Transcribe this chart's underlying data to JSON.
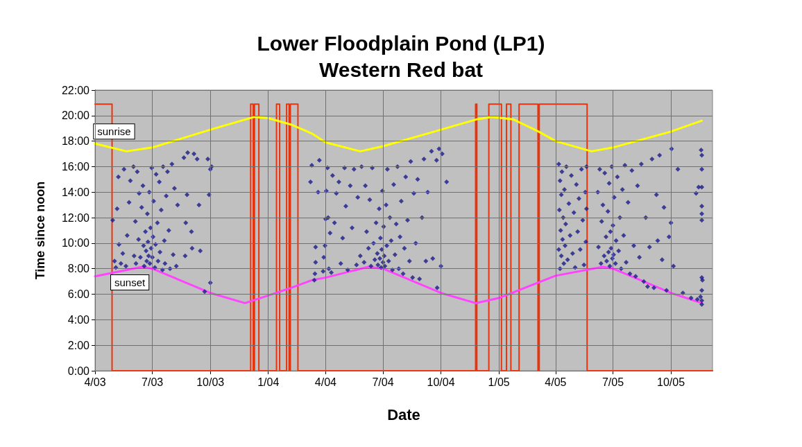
{
  "chart_data": {
    "type": "scatter",
    "title": "Lower Floodplain Pond (LP1)",
    "subtitle": "Western Red bat",
    "xlabel": "Date",
    "ylabel": "Time since noon",
    "xlim": [
      "2003-04-01",
      "2005-12-06"
    ],
    "xticks": [
      {
        "value": "2003-04-01",
        "label": "4/03"
      },
      {
        "value": "2003-07-01",
        "label": "7/03"
      },
      {
        "value": "2003-10-01",
        "label": "10/03"
      },
      {
        "value": "2004-01-01",
        "label": "1/04"
      },
      {
        "value": "2004-04-01",
        "label": "4/04"
      },
      {
        "value": "2004-07-01",
        "label": "7/04"
      },
      {
        "value": "2004-10-01",
        "label": "10/04"
      },
      {
        "value": "2005-01-01",
        "label": "1/05"
      },
      {
        "value": "2005-04-01",
        "label": "4/05"
      },
      {
        "value": "2005-07-01",
        "label": "7/05"
      },
      {
        "value": "2005-10-01",
        "label": "10/05"
      }
    ],
    "ylim": [
      0,
      22
    ],
    "yticks": [
      {
        "value": 0,
        "label": "0:00"
      },
      {
        "value": 2,
        "label": "2:00"
      },
      {
        "value": 4,
        "label": "4:00"
      },
      {
        "value": 6,
        "label": "6:00"
      },
      {
        "value": 8,
        "label": "8:00"
      },
      {
        "value": 10,
        "label": "10:00"
      },
      {
        "value": 12,
        "label": "12:00"
      },
      {
        "value": 14,
        "label": "14:00"
      },
      {
        "value": 16,
        "label": "16:00"
      },
      {
        "value": 18,
        "label": "18:00"
      },
      {
        "value": 20,
        "label": "20:00"
      },
      {
        "value": 22,
        "label": "22:00"
      }
    ],
    "grid": true,
    "legend": false,
    "series": [
      {
        "type": "line",
        "color": "#e8340c",
        "marker": "none",
        "x": [
          "2003-04-01",
          "2003-04-28",
          "2003-04-28",
          "2003-12-04",
          "2003-12-04",
          "2003-12-08",
          "2003-12-08",
          "2003-12-10",
          "2003-12-10",
          "2003-12-17",
          "2003-12-17",
          "2004-01-14",
          "2004-01-14",
          "2004-01-19",
          "2004-01-19",
          "2004-01-30",
          "2004-01-30",
          "2004-02-03",
          "2004-02-03",
          "2004-02-05",
          "2004-02-05",
          "2004-02-17",
          "2004-02-17",
          "2004-11-25",
          "2004-11-25",
          "2004-11-27",
          "2004-11-27",
          "2004-12-16",
          "2004-12-16",
          "2005-01-05",
          "2005-01-05",
          "2005-01-13",
          "2005-01-13",
          "2005-01-20",
          "2005-01-20",
          "2005-02-02",
          "2005-02-02",
          "2005-03-04",
          "2005-03-04",
          "2005-03-06",
          "2005-03-06",
          "2005-05-21",
          "2005-05-21",
          "2005-12-06"
        ],
        "values": [
          20.9,
          20.9,
          0,
          0,
          20.9,
          20.9,
          0,
          0,
          20.9,
          20.9,
          0,
          0,
          20.9,
          20.9,
          0,
          0,
          20.9,
          20.9,
          0,
          0,
          20.9,
          20.9,
          0,
          0,
          20.9,
          20.9,
          0,
          0,
          20.9,
          20.9,
          0,
          0,
          20.9,
          20.9,
          0,
          0,
          20.9,
          20.9,
          0,
          0,
          20.9,
          20.9,
          0,
          0
        ]
      },
      {
        "type": "line",
        "name": "sunrise",
        "color": "#ffff00",
        "marker": "none",
        "x": [
          "2003-04-01",
          "2003-05-21",
          "2003-07-01",
          "2003-10-01",
          "2003-12-10",
          "2004-01-01",
          "2004-02-06",
          "2004-03-10",
          "2004-04-01",
          "2004-05-26",
          "2004-07-01",
          "2004-10-01",
          "2004-11-26",
          "2004-12-21",
          "2005-01-24",
          "2005-03-05",
          "2005-04-01",
          "2005-05-28",
          "2005-07-01",
          "2005-10-01",
          "2005-11-19"
        ],
        "values": [
          17.8,
          17.2,
          17.5,
          18.9,
          19.9,
          19.8,
          19.3,
          18.6,
          17.9,
          17.2,
          17.6,
          18.9,
          19.7,
          19.9,
          19.7,
          18.75,
          18.0,
          17.2,
          17.5,
          18.75,
          19.6
        ]
      },
      {
        "type": "line",
        "name": "sunset",
        "color": "#ff44ff",
        "marker": "none",
        "x": [
          "2003-04-01",
          "2003-06-15",
          "2003-07-01",
          "2003-10-01",
          "2003-11-25",
          "2004-01-01",
          "2004-02-06",
          "2004-03-10",
          "2004-04-01",
          "2004-06-08",
          "2004-07-01",
          "2004-10-01",
          "2004-11-25",
          "2005-01-01",
          "2005-04-01",
          "2005-06-15",
          "2005-07-01",
          "2005-10-01",
          "2005-11-19"
        ],
        "values": [
          7.4,
          8.15,
          8.0,
          6.1,
          5.3,
          5.9,
          6.5,
          7.1,
          7.3,
          8.15,
          8.0,
          6.1,
          5.3,
          5.7,
          7.45,
          8.15,
          8.0,
          6.1,
          5.3
        ]
      },
      {
        "color": "#1a1a8c",
        "marker": "diamond",
        "x": [
          "2003-04-29",
          "2003-05-02",
          "2003-05-04",
          "2003-05-06",
          "2003-05-08",
          "2003-05-09",
          "2003-05-12",
          "2003-05-15",
          "2003-05-17",
          "2003-05-20",
          "2003-05-22",
          "2003-05-25",
          "2003-05-27",
          "2003-06-01",
          "2003-06-02",
          "2003-06-04",
          "2003-06-05",
          "2003-06-07",
          "2003-06-09",
          "2003-06-10",
          "2003-06-12",
          "2003-06-14",
          "2003-06-16",
          "2003-06-17",
          "2003-06-18",
          "2003-06-20",
          "2003-06-21",
          "2003-06-22",
          "2003-06-23",
          "2003-06-24",
          "2003-06-25",
          "2003-06-26",
          "2003-06-27",
          "2003-06-28",
          "2003-06-29",
          "2003-06-30",
          "2003-07-01",
          "2003-07-02",
          "2003-07-03",
          "2003-07-05",
          "2003-07-06",
          "2003-07-07",
          "2003-07-09",
          "2003-07-10",
          "2003-07-12",
          "2003-07-13",
          "2003-07-15",
          "2003-07-17",
          "2003-07-18",
          "2003-07-20",
          "2003-07-21",
          "2003-07-23",
          "2003-07-25",
          "2003-07-27",
          "2003-07-29",
          "2003-08-01",
          "2003-08-03",
          "2003-08-05",
          "2003-08-08",
          "2003-08-10",
          "2003-08-20",
          "2003-08-22",
          "2003-08-23",
          "2003-08-25",
          "2003-08-26",
          "2003-09-01",
          "2003-09-02",
          "2003-09-05",
          "2003-09-10",
          "2003-09-13",
          "2003-09-15",
          "2003-09-22",
          "2003-09-27",
          "2003-09-29",
          "2003-10-01",
          "2003-10-03",
          "2003-10-01",
          "2004-03-08",
          "2004-03-10",
          "2004-03-14",
          "2004-03-15",
          "2004-03-16",
          "2004-03-16",
          "2004-03-20",
          "2004-03-22",
          "2004-03-28",
          "2004-03-29",
          "2004-03-31",
          "2004-04-01",
          "2004-04-02",
          "2004-04-04",
          "2004-04-05",
          "2004-04-06",
          "2004-04-08",
          "2004-04-10",
          "2004-04-12",
          "2004-04-15",
          "2004-04-18",
          "2004-04-22",
          "2004-04-25",
          "2004-04-28",
          "2004-05-01",
          "2004-05-03",
          "2004-05-06",
          "2004-05-10",
          "2004-05-13",
          "2004-05-16",
          "2004-05-20",
          "2004-05-22",
          "2004-05-26",
          "2004-05-28",
          "2004-06-01",
          "2004-06-03",
          "2004-06-05",
          "2004-06-08",
          "2004-06-10",
          "2004-06-12",
          "2004-06-14",
          "2004-06-16",
          "2004-06-18",
          "2004-06-20",
          "2004-06-22",
          "2004-06-23",
          "2004-06-25",
          "2004-06-26",
          "2004-06-27",
          "2004-06-28",
          "2004-06-29",
          "2004-06-30",
          "2004-07-01",
          "2004-07-02",
          "2004-07-03",
          "2004-07-04",
          "2004-07-06",
          "2004-07-07",
          "2004-07-08",
          "2004-07-10",
          "2004-07-12",
          "2004-07-14",
          "2004-07-16",
          "2004-07-18",
          "2004-07-20",
          "2004-07-22",
          "2004-07-24",
          "2004-07-26",
          "2004-07-28",
          "2004-07-30",
          "2004-08-02",
          "2004-08-04",
          "2004-08-06",
          "2004-08-09",
          "2004-08-12",
          "2004-08-14",
          "2004-08-17",
          "2004-08-19",
          "2004-08-22",
          "2004-08-25",
          "2004-08-28",
          "2004-09-01",
          "2004-09-04",
          "2004-09-07",
          "2004-09-10",
          "2004-09-16",
          "2004-09-18",
          "2004-09-24",
          "2004-09-25",
          "2004-09-28",
          "2004-10-01",
          "2004-10-03",
          "2004-10-10",
          "2005-04-06",
          "2005-04-06",
          "2005-04-07",
          "2005-04-08",
          "2005-04-08",
          "2005-04-09",
          "2005-04-10",
          "2005-04-10",
          "2005-04-11",
          "2005-04-12",
          "2005-04-13",
          "2005-04-14",
          "2005-04-15",
          "2005-04-16",
          "2005-04-17",
          "2005-04-18",
          "2005-04-20",
          "2005-04-22",
          "2005-04-24",
          "2005-04-26",
          "2005-04-28",
          "2005-04-30",
          "2005-05-02",
          "2005-05-04",
          "2005-05-06",
          "2005-05-08",
          "2005-05-10",
          "2005-05-12",
          "2005-05-14",
          "2005-05-16",
          "2005-05-18",
          "2005-05-19",
          "2005-05-20",
          "2005-05-20",
          "2005-06-07",
          "2005-06-08",
          "2005-06-10",
          "2005-06-12",
          "2005-06-13",
          "2005-06-15",
          "2005-06-17",
          "2005-06-18",
          "2005-06-20",
          "2005-06-21",
          "2005-06-23",
          "2005-06-24",
          "2005-06-25",
          "2005-06-26",
          "2005-06-27",
          "2005-06-28",
          "2005-06-29",
          "2005-06-30",
          "2005-07-01",
          "2005-07-02",
          "2005-07-03",
          "2005-07-05",
          "2005-07-06",
          "2005-07-08",
          "2005-07-10",
          "2005-07-12",
          "2005-07-14",
          "2005-07-16",
          "2005-07-18",
          "2005-07-20",
          "2005-07-22",
          "2005-07-25",
          "2005-07-28",
          "2005-07-31",
          "2005-08-03",
          "2005-08-06",
          "2005-08-09",
          "2005-08-12",
          "2005-08-15",
          "2005-08-19",
          "2005-08-22",
          "2005-08-25",
          "2005-08-28",
          "2005-09-01",
          "2005-09-04",
          "2005-09-08",
          "2005-09-10",
          "2005-09-13",
          "2005-09-17",
          "2005-09-20",
          "2005-09-24",
          "2005-09-28",
          "2005-10-01",
          "2005-10-05",
          "2005-10-02",
          "2005-10-12",
          "2005-10-20",
          "2005-11-02",
          "2005-11-10",
          "2005-11-12",
          "2005-11-14",
          "2005-11-18",
          "2005-11-19",
          "2005-11-19",
          "2005-11-19",
          "2005-11-19",
          "2005-11-19",
          "2005-11-19",
          "2005-11-19",
          "2005-11-19",
          "2005-11-19",
          "2005-11-19",
          "2005-11-20",
          "2005-11-17"
        ],
        "values": [
          11.8,
          8.6,
          8.1,
          12.7,
          15.2,
          9.9,
          8.4,
          9.2,
          15.8,
          8.2,
          10.6,
          13.2,
          14.9,
          16.0,
          9.0,
          11.7,
          8.4,
          15.6,
          10.3,
          13.9,
          8.9,
          12.8,
          14.5,
          9.8,
          8.2,
          10.9,
          9.4,
          8.6,
          12.3,
          10.1,
          9.0,
          14.0,
          8.4,
          11.2,
          9.6,
          15.9,
          8.9,
          10.5,
          13.3,
          8.1,
          9.9,
          15.4,
          11.6,
          8.6,
          14.8,
          9.3,
          12.6,
          7.9,
          16.0,
          10.2,
          8.4,
          13.7,
          15.6,
          11.0,
          8.0,
          16.2,
          9.1,
          14.3,
          8.2,
          13.0,
          16.7,
          9.0,
          11.6,
          13.8,
          17.1,
          10.9,
          9.6,
          17.0,
          16.6,
          13.0,
          9.4,
          6.2,
          16.6,
          13.8,
          6.9,
          16.0,
          15.8,
          14.8,
          16.1,
          7.1,
          7.6,
          8.5,
          9.7,
          14.0,
          16.5,
          7.8,
          8.9,
          9.8,
          11.9,
          14.1,
          15.9,
          12.0,
          8.0,
          10.8,
          7.7,
          15.3,
          11.6,
          13.9,
          14.8,
          8.4,
          10.4,
          15.9,
          12.9,
          7.9,
          14.5,
          11.2,
          15.8,
          8.3,
          13.6,
          9.0,
          16.0,
          8.5,
          14.5,
          10.9,
          9.6,
          13.4,
          8.2,
          15.9,
          10.0,
          8.7,
          11.6,
          9.2,
          8.3,
          12.7,
          8.8,
          10.4,
          8.1,
          9.5,
          14.1,
          8.5,
          11.3,
          9.0,
          8.2,
          13.0,
          9.8,
          15.8,
          8.6,
          12.0,
          10.2,
          7.9,
          14.6,
          9.1,
          11.5,
          16.0,
          8.0,
          10.5,
          13.3,
          7.6,
          9.6,
          15.2,
          11.8,
          8.6,
          16.4,
          7.3,
          13.9,
          10.0,
          15.0,
          7.2,
          12.0,
          16.6,
          8.6,
          14.0,
          17.2,
          8.8,
          16.5,
          6.5,
          17.4,
          8.2,
          17.0,
          14.8,
          16.2,
          9.5,
          12.6,
          14.9,
          8.0,
          11.0,
          13.8,
          9.0,
          15.6,
          10.3,
          12.0,
          8.4,
          14.2,
          9.8,
          11.5,
          16.0,
          8.7,
          13.1,
          10.6,
          15.3,
          9.2,
          12.4,
          8.1,
          14.6,
          10.9,
          13.5,
          9.5,
          15.8,
          11.8,
          8.3,
          14.0,
          10.1,
          16.0,
          12.7,
          14.0,
          9.7,
          15.8,
          8.4,
          11.7,
          13.0,
          9.0,
          15.5,
          10.5,
          8.6,
          12.5,
          9.3,
          14.7,
          8.2,
          10.9,
          9.6,
          16.0,
          8.8,
          11.4,
          9.1,
          13.6,
          8.4,
          10.2,
          15.2,
          9.4,
          12.0,
          8.0,
          14.2,
          10.6,
          16.1,
          8.5,
          13.2,
          7.6,
          15.7,
          9.8,
          7.4,
          14.5,
          8.9,
          16.2,
          7.0,
          12.0,
          6.6,
          9.7,
          16.6,
          6.5,
          13.8,
          10.2,
          16.9,
          8.7,
          12.8,
          6.3,
          10.5,
          11.6,
          8.2,
          17.4,
          15.8,
          6.1,
          5.7,
          13.9,
          5.6,
          14.4,
          17.3,
          16.9,
          15.8,
          14.4,
          12.9,
          12.3,
          11.8,
          7.3,
          6.3,
          5.5,
          5.2,
          7.1,
          5.8
        ]
      }
    ]
  }
}
